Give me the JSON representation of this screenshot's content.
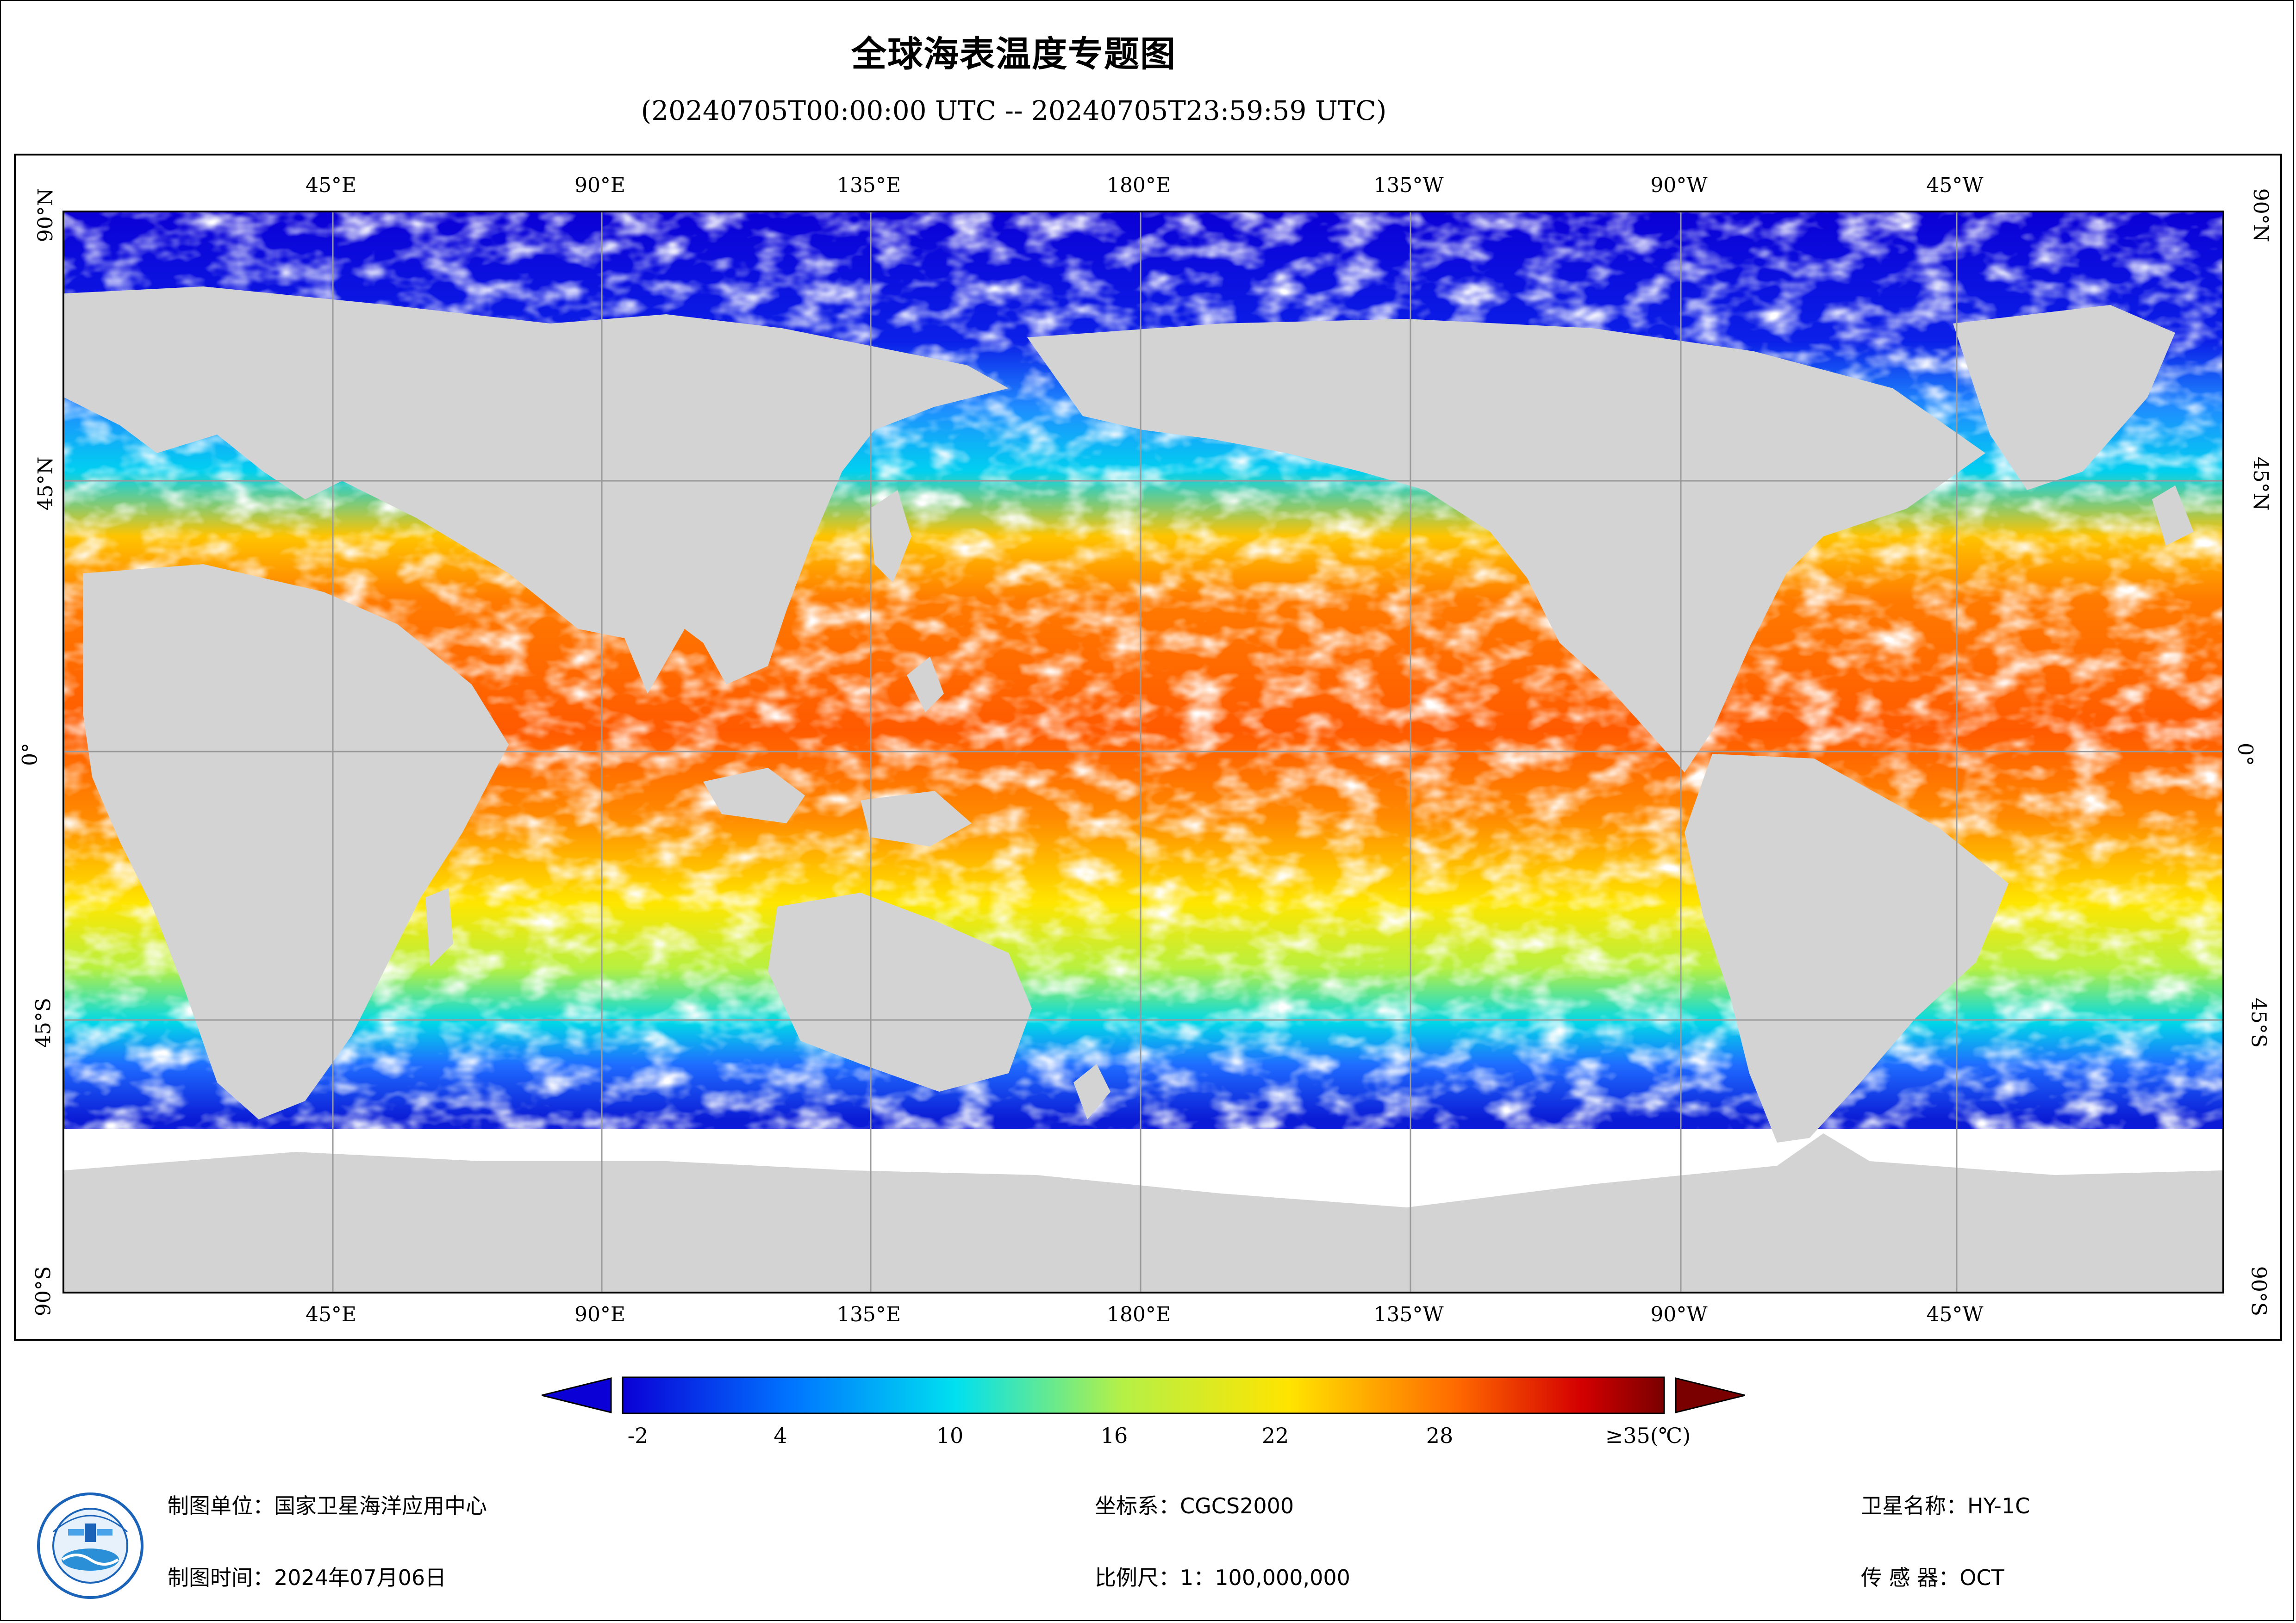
{
  "title": "全球海表温度专题图",
  "subtitle": "(20240705T00:00:00 UTC -- 20240705T23:59:59 UTC)",
  "lon_ticks": [
    "45°E",
    "90°E",
    "135°E",
    "180°E",
    "135°W",
    "90°W",
    "45°W"
  ],
  "lat_ticks": [
    "90°N",
    "45°N",
    "0°",
    "45°S",
    "90°S"
  ],
  "colorbar": {
    "labels": [
      "-2",
      "4",
      "10",
      "16",
      "22",
      "28",
      "≥35(℃)"
    ],
    "stops": [
      -2,
      4,
      10,
      16,
      22,
      28,
      35
    ],
    "colors": [
      "#0b00d6",
      "#0073ff",
      "#00e0f0",
      "#b5f046",
      "#ffe400",
      "#ff6a00",
      "#7a0000"
    ]
  },
  "footer": {
    "unit": "制图单位：国家卫星海洋应用中心",
    "time": "制图时间：2024年07月06日",
    "crs": "坐标系：CGCS2000",
    "scale": "比例尺：1：100,000,000",
    "satellite": "卫星名称：HY-1C",
    "sensor": "传  感  器：OCT"
  },
  "colors": {
    "land": "#d3d3d3",
    "cloud": "#ffffff",
    "polar": "#0d1fd6",
    "grid": "#9a9a9a"
  }
}
